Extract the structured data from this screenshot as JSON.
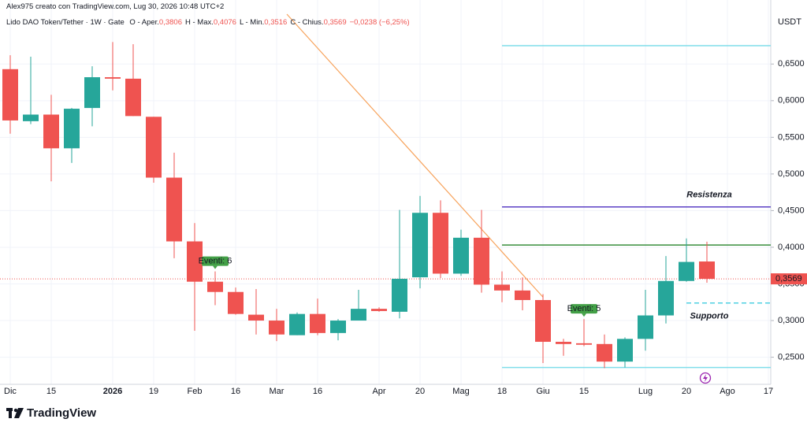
{
  "header": {
    "credit": "Alex975 creato con TradingView.com, Lug 30, 2026 10:48 UTC+2",
    "symbol": "Lido DAO Token/Tether · 1W · Gate",
    "ohlc": [
      {
        "label": "O - Aper.",
        "value": "0,3806"
      },
      {
        "label": "H - Max.",
        "value": "0,4076"
      },
      {
        "label": "L - Min.",
        "value": "0,3516"
      },
      {
        "label": "C - Chius.",
        "value": "0,3569"
      }
    ],
    "change": "−0,0238 (−6,25%)"
  },
  "chart_data": {
    "type": "candlestick",
    "categories": [
      "Dic",
      null,
      "15",
      null,
      null,
      "2026",
      null,
      "19",
      null,
      "Feb",
      null,
      "16",
      null,
      "Mar",
      null,
      "16",
      null,
      null,
      "Apr",
      null,
      "20",
      null,
      "Mag",
      null,
      "18",
      null,
      "Giu",
      null,
      "15",
      null,
      null,
      "Lug",
      null,
      "20",
      null,
      "Ago",
      null,
      "17"
    ],
    "open": [
      0.643,
      0.572,
      0.581,
      0.535,
      0.59,
      0.632,
      0.63,
      0.578,
      0.495,
      0.408,
      0.353,
      0.339,
      0.308,
      0.3,
      0.28,
      0.309,
      0.283,
      0.3,
      0.316,
      0.312,
      0.359,
      0.447,
      0.364,
      0.413,
      0.349,
      0.341,
      0.328,
      0.271,
      0.269,
      0.268,
      0.244,
      0.275,
      0.307,
      0.354,
      0.3806,
      null,
      null,
      null
    ],
    "high": [
      0.662,
      0.66,
      0.608,
      0.59,
      0.647,
      0.68,
      0.677,
      0.578,
      0.529,
      0.433,
      0.367,
      0.345,
      0.343,
      0.316,
      0.311,
      0.33,
      0.302,
      0.342,
      0.318,
      0.451,
      0.47,
      0.464,
      0.424,
      0.451,
      0.367,
      0.359,
      0.336,
      0.275,
      0.302,
      0.281,
      0.277,
      0.342,
      0.388,
      0.412,
      0.4076,
      null,
      null,
      null
    ],
    "low": [
      0.555,
      0.568,
      0.49,
      0.515,
      0.565,
      0.614,
      0.579,
      0.488,
      0.385,
      0.286,
      0.321,
      0.308,
      0.281,
      0.272,
      0.28,
      0.28,
      0.273,
      0.301,
      0.312,
      0.303,
      0.344,
      0.358,
      0.361,
      0.338,
      0.325,
      0.314,
      0.242,
      0.252,
      0.265,
      0.235,
      0.236,
      0.259,
      0.296,
      0.353,
      0.3516,
      null,
      null,
      null
    ],
    "close": [
      0.573,
      0.581,
      0.535,
      0.589,
      0.632,
      0.63,
      0.579,
      0.495,
      0.408,
      0.353,
      0.339,
      0.309,
      0.3,
      0.281,
      0.309,
      0.283,
      0.3,
      0.316,
      0.313,
      0.357,
      0.447,
      0.364,
      0.413,
      0.349,
      0.341,
      0.328,
      0.271,
      0.268,
      0.267,
      0.244,
      0.275,
      0.307,
      0.354,
      0.38,
      0.3569,
      null,
      null,
      null
    ],
    "up_color": "#26a69a",
    "down_color": "#ef5350",
    "ylim": [
      0.213,
      0.718
    ],
    "yticks": [
      {
        "value": 0.25,
        "label": "0,2500"
      },
      {
        "value": 0.3,
        "label": "0,3000"
      },
      {
        "value": 0.35,
        "label": "0,3500"
      },
      {
        "value": 0.4,
        "label": "0,4000"
      },
      {
        "value": 0.45,
        "label": "0,4500"
      },
      {
        "value": 0.5,
        "label": "0,5000"
      },
      {
        "value": 0.55,
        "label": "0,5500"
      },
      {
        "value": 0.6,
        "label": "0,6000"
      },
      {
        "value": 0.65,
        "label": "0,6500"
      }
    ],
    "y_axis_label": "USDT",
    "grid": true,
    "last_price": {
      "value": 0.3569,
      "label": "0,3569"
    },
    "lines": [
      {
        "value": 0.675,
        "start": 24,
        "color": "#80deea",
        "style": "solid"
      },
      {
        "value": 0.455,
        "start": 24,
        "color": "#5b3fc4",
        "style": "solid",
        "label": "Resistenza",
        "label_color": "#ab47bc"
      },
      {
        "value": 0.403,
        "start": 24,
        "color": "#388e3c",
        "style": "solid"
      },
      {
        "value": 0.324,
        "start": 33,
        "color": "#4dd0e1",
        "style": "dashed",
        "label": "Supporto",
        "label_color": "#26c6da"
      },
      {
        "value": 0.236,
        "start": 24,
        "color": "#80deea",
        "style": "solid"
      }
    ],
    "trendline": {
      "x": [
        13.5,
        26
      ],
      "y": [
        0.718,
        0.332
      ],
      "color": "#f7a35c"
    },
    "events": [
      {
        "index": 10,
        "label": "Eventi: 6"
      },
      {
        "index": 28,
        "label": "Eventi: 5"
      }
    ]
  },
  "footer": {
    "brand": "TradingView"
  }
}
